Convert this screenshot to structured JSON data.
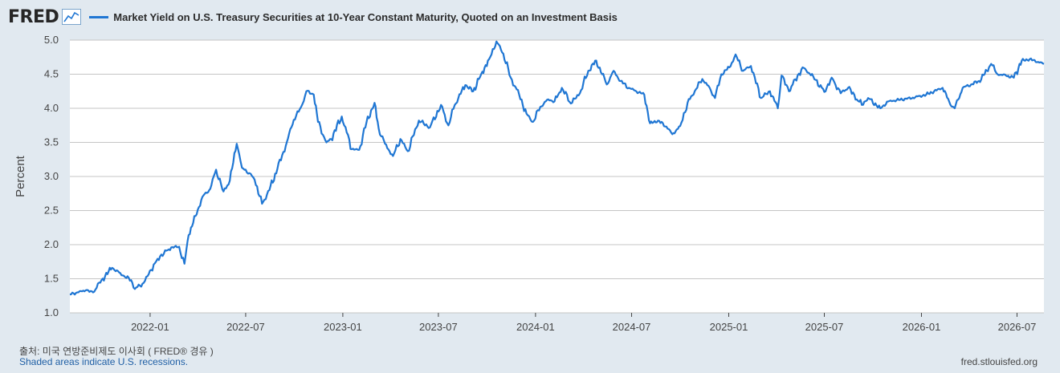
{
  "brand": {
    "logo_text": "FRED",
    "logo_icon": "line-chart-icon"
  },
  "source_note": "출처: 미국 연방준비제도 이사회 ( FRED® 경유 )",
  "recession_note": "Shaded areas indicate U.S. recessions.",
  "site_link": "fred.stlouisfed.org",
  "colors": {
    "series": "#1f76d3",
    "background": "#e1e9f0",
    "plot_bg": "#ffffff",
    "grid": "#c5c5c5",
    "text": "#444444"
  },
  "chart_data": {
    "type": "line",
    "title": "",
    "xlabel": "",
    "ylabel": "Percent",
    "ylim": [
      1.0,
      5.0
    ],
    "xlim": [
      "2021-08-02",
      "2026-08-21"
    ],
    "y_ticks": [
      "1.0",
      "1.5",
      "2.0",
      "2.5",
      "3.0",
      "3.5",
      "4.0",
      "4.5",
      "5.0"
    ],
    "x_ticks": [
      {
        "date": "2022-01-01",
        "label": "2022-01"
      },
      {
        "date": "2022-07-01",
        "label": "2022-07"
      },
      {
        "date": "2023-01-01",
        "label": "2023-01"
      },
      {
        "date": "2023-07-01",
        "label": "2023-07"
      },
      {
        "date": "2024-01-01",
        "label": "2024-01"
      },
      {
        "date": "2024-07-01",
        "label": "2024-07"
      },
      {
        "date": "2025-01-01",
        "label": "2025-01"
      },
      {
        "date": "2025-07-01",
        "label": "2025-07"
      },
      {
        "date": "2026-01-01",
        "label": "2026-01"
      },
      {
        "date": "2026-07-01",
        "label": "2026-07"
      }
    ],
    "grid": true,
    "legend": "top-left",
    "series": [
      {
        "name": "Market Yield on U.S. Treasury Securities at 10-Year Constant Maturity, Quoted on an Investment Basis",
        "color": "#1f76d3",
        "points": [
          [
            "2021-08-02",
            1.27
          ],
          [
            "2021-08-16",
            1.3
          ],
          [
            "2021-09-01",
            1.33
          ],
          [
            "2021-09-15",
            1.3
          ],
          [
            "2021-10-01",
            1.48
          ],
          [
            "2021-10-21",
            1.66
          ],
          [
            "2021-11-10",
            1.55
          ],
          [
            "2021-11-26",
            1.48
          ],
          [
            "2021-12-03",
            1.35
          ],
          [
            "2021-12-20",
            1.44
          ],
          [
            "2022-01-03",
            1.63
          ],
          [
            "2022-01-20",
            1.83
          ],
          [
            "2022-02-10",
            1.96
          ],
          [
            "2022-02-25",
            1.97
          ],
          [
            "2022-03-07",
            1.72
          ],
          [
            "2022-03-15",
            2.14
          ],
          [
            "2022-03-28",
            2.42
          ],
          [
            "2022-04-10",
            2.7
          ],
          [
            "2022-04-25",
            2.82
          ],
          [
            "2022-05-06",
            3.1
          ],
          [
            "2022-05-20",
            2.78
          ],
          [
            "2022-06-01",
            2.94
          ],
          [
            "2022-06-14",
            3.48
          ],
          [
            "2022-06-24",
            3.13
          ],
          [
            "2022-07-08",
            3.05
          ],
          [
            "2022-07-18",
            2.95
          ],
          [
            "2022-08-01",
            2.6
          ],
          [
            "2022-08-15",
            2.8
          ],
          [
            "2022-08-30",
            3.11
          ],
          [
            "2022-09-15",
            3.45
          ],
          [
            "2022-09-30",
            3.83
          ],
          [
            "2022-10-14",
            4.02
          ],
          [
            "2022-10-24",
            4.25
          ],
          [
            "2022-11-07",
            4.2
          ],
          [
            "2022-11-15",
            3.8
          ],
          [
            "2022-12-01",
            3.5
          ],
          [
            "2022-12-10",
            3.55
          ],
          [
            "2022-12-30",
            3.88
          ],
          [
            "2023-01-18",
            3.4
          ],
          [
            "2023-02-01",
            3.39
          ],
          [
            "2023-02-15",
            3.8
          ],
          [
            "2023-03-02",
            4.08
          ],
          [
            "2023-03-10",
            3.7
          ],
          [
            "2023-03-22",
            3.48
          ],
          [
            "2023-04-06",
            3.3
          ],
          [
            "2023-04-20",
            3.55
          ],
          [
            "2023-05-04",
            3.37
          ],
          [
            "2023-05-25",
            3.82
          ],
          [
            "2023-06-15",
            3.72
          ],
          [
            "2023-07-06",
            4.05
          ],
          [
            "2023-07-20",
            3.75
          ],
          [
            "2023-08-01",
            4.05
          ],
          [
            "2023-08-21",
            4.34
          ],
          [
            "2023-09-05",
            4.25
          ],
          [
            "2023-09-20",
            4.5
          ],
          [
            "2023-10-05",
            4.72
          ],
          [
            "2023-10-19",
            4.98
          ],
          [
            "2023-11-01",
            4.8
          ],
          [
            "2023-11-15",
            4.45
          ],
          [
            "2023-12-01",
            4.2
          ],
          [
            "2023-12-15",
            3.92
          ],
          [
            "2023-12-27",
            3.8
          ],
          [
            "2024-01-10",
            4.02
          ],
          [
            "2024-01-25",
            4.13
          ],
          [
            "2024-02-06",
            4.1
          ],
          [
            "2024-02-20",
            4.3
          ],
          [
            "2024-03-08",
            4.07
          ],
          [
            "2024-03-25",
            4.22
          ],
          [
            "2024-04-10",
            4.55
          ],
          [
            "2024-04-25",
            4.7
          ],
          [
            "2024-05-15",
            4.35
          ],
          [
            "2024-05-28",
            4.55
          ],
          [
            "2024-06-10",
            4.4
          ],
          [
            "2024-06-26",
            4.3
          ],
          [
            "2024-07-10",
            4.25
          ],
          [
            "2024-07-25",
            4.2
          ],
          [
            "2024-08-05",
            3.78
          ],
          [
            "2024-08-20",
            3.82
          ],
          [
            "2024-09-05",
            3.73
          ],
          [
            "2024-09-16",
            3.62
          ],
          [
            "2024-10-01",
            3.74
          ],
          [
            "2024-10-15",
            4.08
          ],
          [
            "2024-10-31",
            4.28
          ],
          [
            "2024-11-12",
            4.43
          ],
          [
            "2024-11-26",
            4.3
          ],
          [
            "2024-12-06",
            4.15
          ],
          [
            "2024-12-18",
            4.5
          ],
          [
            "2025-01-02",
            4.6
          ],
          [
            "2025-01-14",
            4.79
          ],
          [
            "2025-01-28",
            4.55
          ],
          [
            "2025-02-12",
            4.62
          ],
          [
            "2025-03-03",
            4.15
          ],
          [
            "2025-03-20",
            4.25
          ],
          [
            "2025-04-04",
            4.0
          ],
          [
            "2025-04-11",
            4.48
          ],
          [
            "2025-04-25",
            4.25
          ],
          [
            "2025-05-21",
            4.6
          ],
          [
            "2025-06-10",
            4.47
          ],
          [
            "2025-07-01",
            4.24
          ],
          [
            "2025-07-15",
            4.45
          ],
          [
            "2025-08-01",
            4.22
          ],
          [
            "2025-08-15",
            4.3
          ],
          [
            "2025-09-10",
            4.05
          ],
          [
            "2025-09-22",
            4.15
          ],
          [
            "2025-10-15",
            4.0
          ],
          [
            "2025-10-30",
            4.1
          ],
          [
            "2025-11-15",
            4.12
          ],
          [
            "2025-12-05",
            4.14
          ],
          [
            "2025-12-20",
            4.16
          ],
          [
            "2026-01-10",
            4.2
          ],
          [
            "2026-01-25",
            4.25
          ],
          [
            "2026-02-10",
            4.3
          ],
          [
            "2026-02-25",
            4.05
          ],
          [
            "2026-03-05",
            4.0
          ],
          [
            "2026-03-20",
            4.3
          ],
          [
            "2026-04-05",
            4.35
          ],
          [
            "2026-04-20",
            4.4
          ],
          [
            "2026-05-05",
            4.55
          ],
          [
            "2026-05-13",
            4.65
          ],
          [
            "2026-05-25",
            4.5
          ],
          [
            "2026-06-10",
            4.48
          ],
          [
            "2026-06-25",
            4.45
          ],
          [
            "2026-07-10",
            4.7
          ],
          [
            "2026-07-25",
            4.72
          ],
          [
            "2026-08-10",
            4.68
          ],
          [
            "2026-08-21",
            4.65
          ]
        ]
      }
    ]
  }
}
